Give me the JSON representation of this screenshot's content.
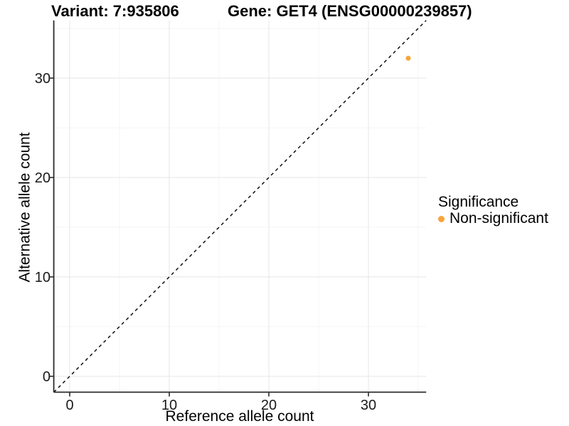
{
  "header": {
    "title_left": "Variant: 7:935806",
    "title_right": "Gene: GET4 (ENSG00000239857)"
  },
  "chart_data": {
    "type": "scatter",
    "title_left": "Variant: 7:935806",
    "title_right": "Gene: GET4 (ENSG00000239857)",
    "xlabel": "Reference allele count",
    "ylabel": "Alternative allele count",
    "xlim": [
      -1.6,
      35.8
    ],
    "ylim": [
      -1.6,
      35.8
    ],
    "x_major_ticks": [
      0,
      10,
      20,
      30
    ],
    "y_major_ticks": [
      0,
      10,
      20,
      30
    ],
    "x_minor_ticks": [
      5,
      15,
      25,
      35
    ],
    "y_minor_ticks": [
      5,
      15,
      25,
      35
    ],
    "grid": "major+minor",
    "identity_line": {
      "style": "dashed",
      "color": "#000000",
      "from": [
        -1.6,
        -1.6
      ],
      "to": [
        35.8,
        35.8
      ]
    },
    "series": [
      {
        "name": "Non-significant",
        "color": "#FAA43A",
        "points": [
          {
            "x": 34,
            "y": 32
          }
        ]
      }
    ],
    "legend": {
      "title": "Significance",
      "position": "right",
      "entries": [
        {
          "label": "Non-significant",
          "color": "#FAA43A"
        }
      ]
    }
  },
  "colors": {
    "background": "#FFFFFF",
    "grid_major": "#E9E9E9",
    "grid_minor": "#F4F4F4",
    "axis_line": "#2B2B2B",
    "tick_text": "#1A1A1A",
    "text": "#000000"
  }
}
